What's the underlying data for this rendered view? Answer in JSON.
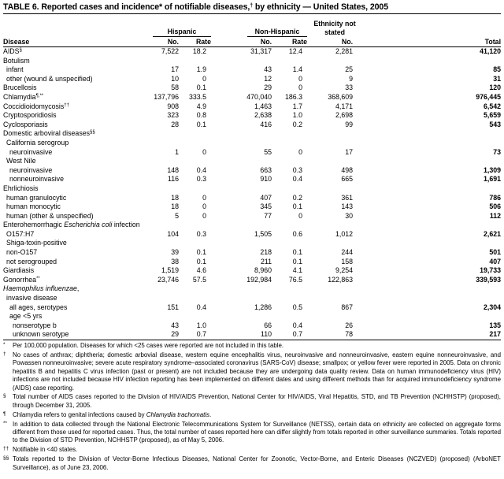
{
  "title": {
    "text": "TABLE 6. Reported cases and incidence* of notifiable diseases,",
    "sup": "†",
    "rest": " by ethnicity — United States, 2005"
  },
  "headers": {
    "disease": "Disease",
    "hispanic": "Hispanic",
    "non_hispanic": "Non-Hispanic",
    "not_stated": "Ethnicity not stated",
    "no": "No.",
    "rate": "Rate",
    "total": "Total"
  },
  "rows": [
    {
      "label": "AIDS",
      "sup": "§",
      "indent": 0,
      "h_no": "7,522",
      "h_rate": "18.2",
      "nh_no": "31,317",
      "nh_rate": "12.4",
      "ns_no": "2,281",
      "total": "41,120"
    },
    {
      "label": "Botulism",
      "indent": 0
    },
    {
      "label": "infant",
      "indent": 1,
      "h_no": "17",
      "h_rate": "1.9",
      "nh_no": "43",
      "nh_rate": "1.4",
      "ns_no": "25",
      "total": "85"
    },
    {
      "label": "other (wound & unspecified)",
      "indent": 1,
      "h_no": "10",
      "h_rate": "0",
      "nh_no": "12",
      "nh_rate": "0",
      "ns_no": "9",
      "total": "31"
    },
    {
      "label": "Brucellosis",
      "indent": 0,
      "h_no": "58",
      "h_rate": "0.1",
      "nh_no": "29",
      "nh_rate": "0",
      "ns_no": "33",
      "total": "120"
    },
    {
      "label": "Chlamydia",
      "sup": "¶,**",
      "indent": 0,
      "h_no": "137,796",
      "h_rate": "333.5",
      "nh_no": "470,040",
      "nh_rate": "186.3",
      "ns_no": "368,609",
      "total": "976,445"
    },
    {
      "label": "Coccidioidomycosis",
      "sup": "††",
      "indent": 0,
      "h_no": "908",
      "h_rate": "4.9",
      "nh_no": "1,463",
      "nh_rate": "1.7",
      "ns_no": "4,171",
      "total": "6,542"
    },
    {
      "label": "Cryptosporidiosis",
      "indent": 0,
      "h_no": "323",
      "h_rate": "0.8",
      "nh_no": "2,638",
      "nh_rate": "1.0",
      "ns_no": "2,698",
      "total": "5,659"
    },
    {
      "label": "Cyclosporiasis",
      "indent": 0,
      "h_no": "28",
      "h_rate": "0.1",
      "nh_no": "416",
      "nh_rate": "0.2",
      "ns_no": "99",
      "total": "543"
    },
    {
      "label": "Domestic arboviral diseases",
      "sup": "§§",
      "indent": 0
    },
    {
      "label": "California serogroup",
      "indent": 1
    },
    {
      "label": "neuroinvasive",
      "indent": 2,
      "h_no": "1",
      "h_rate": "0",
      "nh_no": "55",
      "nh_rate": "0",
      "ns_no": "17",
      "total": "73"
    },
    {
      "label": "West Nile",
      "indent": 1
    },
    {
      "label": "neuroinvasive",
      "indent": 2,
      "h_no": "148",
      "h_rate": "0.4",
      "nh_no": "663",
      "nh_rate": "0.3",
      "ns_no": "498",
      "total": "1,309"
    },
    {
      "label": "nonneuroinvasive",
      "indent": 2,
      "h_no": "116",
      "h_rate": "0.3",
      "nh_no": "910",
      "nh_rate": "0.4",
      "ns_no": "665",
      "total": "1,691"
    },
    {
      "label": "Ehrlichiosis",
      "indent": 0
    },
    {
      "label": "human granulocytic",
      "indent": 1,
      "h_no": "18",
      "h_rate": "0",
      "nh_no": "407",
      "nh_rate": "0.2",
      "ns_no": "361",
      "total": "786"
    },
    {
      "label": "human monocytic",
      "indent": 1,
      "h_no": "18",
      "h_rate": "0",
      "nh_no": "345",
      "nh_rate": "0.1",
      "ns_no": "143",
      "total": "506"
    },
    {
      "label": "human (other & unspecified)",
      "indent": 1,
      "h_no": "5",
      "h_rate": "0",
      "nh_no": "77",
      "nh_rate": "0",
      "ns_no": "30",
      "total": "112"
    },
    {
      "label": "Enterohemorrhagic ",
      "italic": "Escherichia coli",
      "label_post": " infection",
      "indent": 0
    },
    {
      "label": "O157:H7",
      "indent": 1,
      "h_no": "104",
      "h_rate": "0.3",
      "nh_no": "1,505",
      "nh_rate": "0.6",
      "ns_no": "1,012",
      "total": "2,621"
    },
    {
      "label": "Shiga-toxin-positive",
      "indent": 1
    },
    {
      "label": "non-O157",
      "indent": 1,
      "h_no": "39",
      "h_rate": "0.1",
      "nh_no": "218",
      "nh_rate": "0.1",
      "ns_no": "244",
      "total": "501"
    },
    {
      "label": "not serogrouped",
      "indent": 1,
      "h_no": "38",
      "h_rate": "0.1",
      "nh_no": "211",
      "nh_rate": "0.1",
      "ns_no": "158",
      "total": "407"
    },
    {
      "label": "Giardiasis",
      "indent": 0,
      "h_no": "1,519",
      "h_rate": "4.6",
      "nh_no": "8,960",
      "nh_rate": "4.1",
      "ns_no": "9,254",
      "total": "19,733"
    },
    {
      "label": "Gonorrhea",
      "sup": "**",
      "indent": 0,
      "h_no": "23,746",
      "h_rate": "57.5",
      "nh_no": "192,984",
      "nh_rate": "76.5",
      "ns_no": "122,863",
      "total": "339,593"
    },
    {
      "label": "",
      "italic": "Haemophilus influenzae",
      "label_post": ",",
      "indent": 0
    },
    {
      "label": "invasive disease",
      "indent": 1
    },
    {
      "label": "all ages, serotypes",
      "indent": 2,
      "h_no": "151",
      "h_rate": "0.4",
      "nh_no": "1,286",
      "nh_rate": "0.5",
      "ns_no": "867",
      "total": "2,304"
    },
    {
      "label": "age <5 yrs",
      "indent": 2
    },
    {
      "label": "nonserotype b",
      "indent": 3,
      "h_no": "43",
      "h_rate": "1.0",
      "nh_no": "66",
      "nh_rate": "0.4",
      "ns_no": "26",
      "total": "135"
    },
    {
      "label": "unknown serotype",
      "indent": 3,
      "h_no": "29",
      "h_rate": "0.7",
      "nh_no": "110",
      "nh_rate": "0.7",
      "ns_no": "78",
      "total": "217"
    }
  ],
  "footnotes": [
    {
      "mark": "*",
      "text": "Per 100,000 population. Diseases for which <25 cases were reported are not included in this table."
    },
    {
      "mark": "†",
      "text": "No cases of anthrax; diphtheria; domestic arbovial disease, western equine encephalitis virus, neuroinvasive and nonneuroinvasive, eastern equine nonneuroinvasive, and Powassen nonneuroinvasive; severe acute respiratory syndrome–associated coronavirus (SARS-CoV) disease; smallpox; or yellow fever were reported in 2005. Data on chronic hepatitis B and hepatitis C virus infection (past or present) are not included because they are undergoing data quality review. Data on human immunodeficiency virus (HIV) infections are not included because HIV infection reporting has been implemented on different dates and using different methods than for acquired immunodeficiency syndrome (AIDS) case reporting."
    },
    {
      "mark": "§",
      "text": "Total number of AIDS cases reported to the Division of HIV/AIDS Prevention, National Center for HIV/AIDS, Viral Hepatitis, STD, and TB Prevention (NCHHSTP) (proposed), through December 31, 2005."
    },
    {
      "mark": "¶",
      "text": "Chlamydia refers to genital infections caused by ",
      "italic": "Chlamydia trachomatis",
      "post": "."
    },
    {
      "mark": "**",
      "text": "In addition to data collected through the National Electronic Telecommunications System for Surveillance (NETSS), certain data on ethnicity are collected on aggregate forms different from those used for reported cases. Thus, the total number of cases reported here can differ slightly from totals reported in other surveillance summaries. Totals reported to the Division of STD Prevention, NCHHSTP (proposed), as of May 5, 2006."
    },
    {
      "mark": "††",
      "text": "Notifiable in <40 states."
    },
    {
      "mark": "§§",
      "text": "Totals reported to the Division of Vector-Borne Infectious Diseases, National Center for Zoonotic, Vector-Borne, and Enteric Diseases (NCZVED) (proposed) (ArboNET Surveillance), as of June 23, 2006."
    }
  ]
}
